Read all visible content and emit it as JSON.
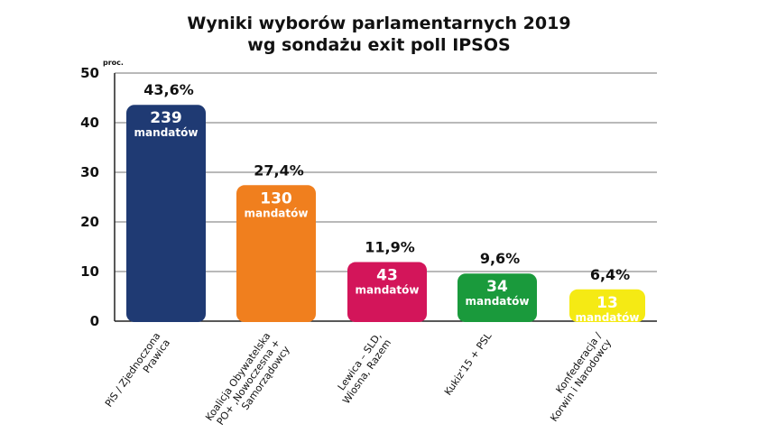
{
  "chart_data": {
    "type": "bar",
    "title_line1": "Wyniki wyborów parlamentarnych 2019",
    "title_line2": "wg sondażu exit poll IPSOS",
    "y_unit": "proc.",
    "ylim": [
      0,
      50
    ],
    "yticks": [
      "0",
      "10",
      "20",
      "30",
      "40",
      "50"
    ],
    "grid": true,
    "categories": [
      [
        "PiS / Zjednoczona",
        "Prawica"
      ],
      [
        "Koalicja Obywatelska",
        "PO+ ,Nowoczesna +",
        "Samorządowcy"
      ],
      [
        "Lewica – SLD,",
        "Wiosna, Razem"
      ],
      [
        "Kukiz'15 + PSL"
      ],
      [
        "Konfederacja /",
        "Korwin i Narodowcy"
      ]
    ],
    "values": [
      43.6,
      27.4,
      11.9,
      9.6,
      6.4
    ],
    "value_labels": [
      "43,6%",
      "27,4%",
      "11,9%",
      "9,6%",
      "6,4%"
    ],
    "seats": [
      "239",
      "130",
      "43",
      "34",
      "13"
    ],
    "seats_label": "mandatów",
    "colors": [
      "#1f3a73",
      "#f07f1e",
      "#d3155a",
      "#1a9a3c",
      "#f5ea14"
    ]
  }
}
